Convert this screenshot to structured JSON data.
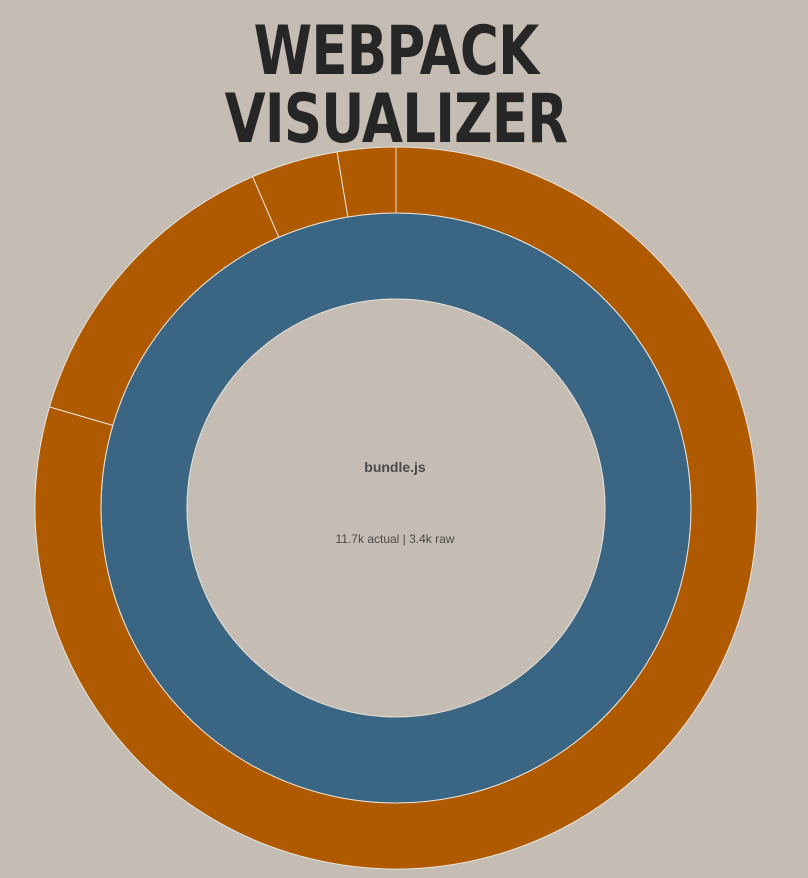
{
  "app": {
    "title": "WEBPACK VISUALIZER"
  },
  "details": {
    "name": "bundle.js",
    "size_text": "11.7k actual | 3.4k raw"
  },
  "colors": {
    "background": "#c5bdb3",
    "title": "#262626",
    "inner_ring": "#3b6683",
    "outer_ring": "#b05a00",
    "separator": "#e8e2da"
  },
  "chart_data": {
    "type": "sunburst",
    "title": "",
    "rings": [
      {
        "level": 1,
        "segments": [
          {
            "fraction": 1.0,
            "color": "#3b6683"
          }
        ]
      },
      {
        "level": 2,
        "segments": [
          {
            "fraction": 0.7952,
            "color": "#b05a00"
          },
          {
            "fraction": 0.1398,
            "color": "#b05a00"
          },
          {
            "fraction": 0.0389,
            "color": "#b05a00"
          },
          {
            "fraction": 0.0261,
            "color": "#b05a00"
          }
        ]
      }
    ]
  }
}
